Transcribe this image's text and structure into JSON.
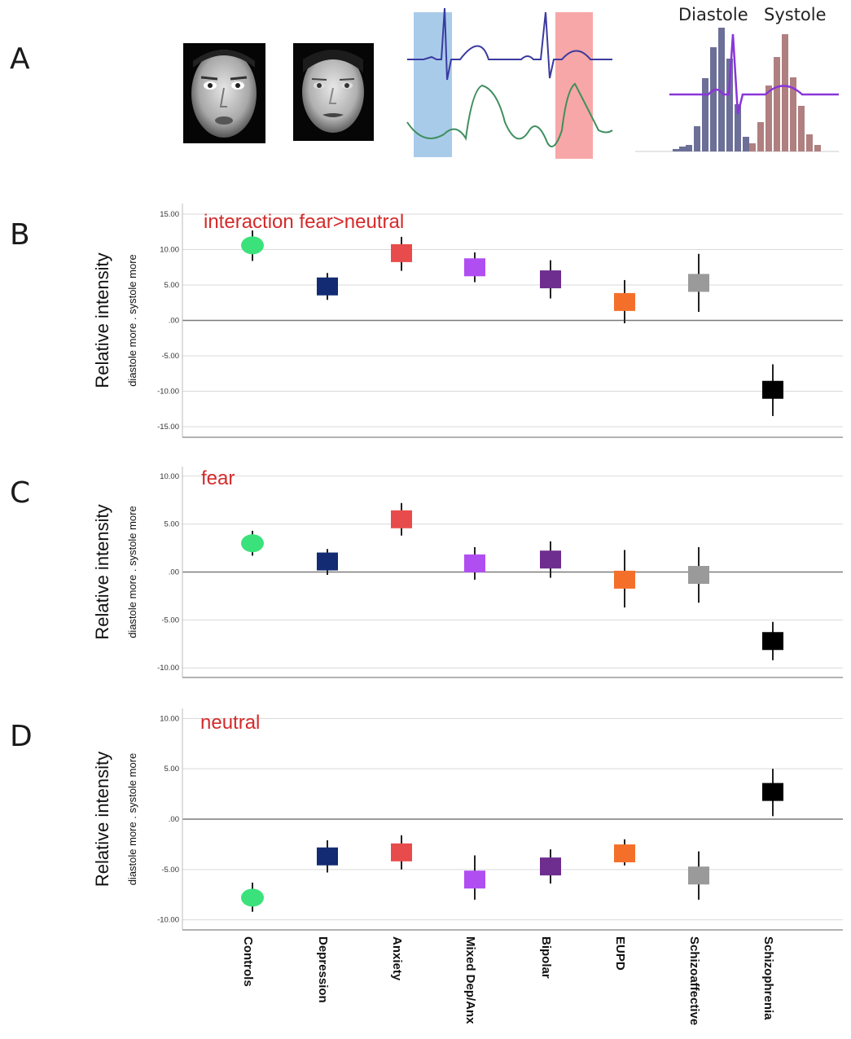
{
  "panel_letters": {
    "a": "A",
    "b": "B",
    "c": "C",
    "d": "D"
  },
  "top_panel": {
    "histogram_labels": {
      "diastole": "Diastole",
      "systole": "Systole"
    },
    "colors": {
      "diastole_window": "#a9cbea",
      "systole_window": "#f7a7a7",
      "ecg_trace": "#3a3aa0",
      "pulse_trace": "#3f8f5f",
      "diastole_bars": "#6c6f97",
      "systole_bars": "#b07f80",
      "overlay_trace": "#8a35d8"
    },
    "icons": [
      "face-image-male",
      "face-image-female"
    ]
  },
  "colors": {
    "Controls": "#3be27b",
    "Depression": "#122b73",
    "Anxiety": "#e84b4b",
    "Mixed Dep/Anx": "#b04ef2",
    "Bipolar": "#6e2e8f",
    "EUPD": "#f4702a",
    "Schizoaffective": "#9a9a9a",
    "Schizophrenia": "#000000",
    "title_text": "#d42a2a",
    "gridline": "#d9d9d9"
  },
  "chart_data": [
    {
      "type": "scatter",
      "title": "interaction fear>neutral",
      "ylabel": "Relative intensity",
      "ylabel_sub": "diastole more . systole more",
      "categories": [
        "Controls",
        "Depression",
        "Anxiety",
        "Mixed Dep/Anx",
        "Bipolar",
        "EUPD",
        "Schizoaffective",
        "Schizophrenia"
      ],
      "yticks": [
        "15.00",
        "10.00",
        "5.00",
        ".00",
        "-5.00",
        "-10.00",
        "-15.00"
      ],
      "ytick_values": [
        15,
        10,
        5,
        0,
        -5,
        -10,
        -15
      ],
      "ylim": [
        -16.5,
        16.5
      ],
      "values": [
        10.6,
        4.8,
        9.5,
        7.5,
        5.8,
        2.6,
        5.3,
        -9.8
      ],
      "err_lo": [
        8.4,
        2.9,
        7.0,
        5.4,
        3.1,
        -0.4,
        1.2,
        -13.5
      ],
      "err_hi": [
        12.7,
        6.7,
        11.8,
        9.6,
        8.5,
        5.7,
        9.4,
        -6.2
      ],
      "grid": true
    },
    {
      "type": "scatter",
      "title": "fear",
      "ylabel": "Relative intensity",
      "ylabel_sub": "diastole more . systole more",
      "categories": [
        "Controls",
        "Depression",
        "Anxiety",
        "Mixed Dep/Anx",
        "Bipolar",
        "EUPD",
        "Schizoaffective",
        "Schizophrenia"
      ],
      "yticks": [
        "10.00",
        "5.00",
        ".00",
        "-5.00",
        "-10.00"
      ],
      "ytick_values": [
        10,
        5,
        0,
        -5,
        -10
      ],
      "ylim": [
        -11,
        11
      ],
      "values": [
        3.0,
        1.1,
        5.5,
        0.9,
        1.3,
        -0.8,
        -0.3,
        -7.2
      ],
      "err_lo": [
        1.7,
        -0.3,
        3.8,
        -0.8,
        -0.6,
        -3.7,
        -3.2,
        -9.2
      ],
      "err_hi": [
        4.3,
        2.4,
        7.2,
        2.6,
        3.2,
        2.3,
        2.6,
        -5.2
      ],
      "grid": true
    },
    {
      "type": "scatter",
      "title": "neutral",
      "ylabel": "Relative intensity",
      "ylabel_sub": "diastole more . systole more",
      "categories": [
        "Controls",
        "Depression",
        "Anxiety",
        "Mixed Dep/Anx",
        "Bipolar",
        "EUPD",
        "Schizoaffective",
        "Schizophrenia"
      ],
      "yticks": [
        "10.00",
        "5.00",
        ".00",
        "-5.00",
        "-10.00"
      ],
      "ytick_values": [
        10,
        5,
        0,
        -5,
        -10
      ],
      "ylim": [
        -11,
        11
      ],
      "values": [
        -7.8,
        -3.7,
        -3.3,
        -6.0,
        -4.7,
        -3.4,
        -5.6,
        2.7
      ],
      "err_lo": [
        -9.2,
        -5.3,
        -5.0,
        -8.0,
        -6.4,
        -4.6,
        -8.0,
        0.3
      ],
      "err_hi": [
        -6.3,
        -2.1,
        -1.6,
        -3.6,
        -3.0,
        -2.0,
        -3.2,
        5.0
      ],
      "grid": true
    }
  ]
}
